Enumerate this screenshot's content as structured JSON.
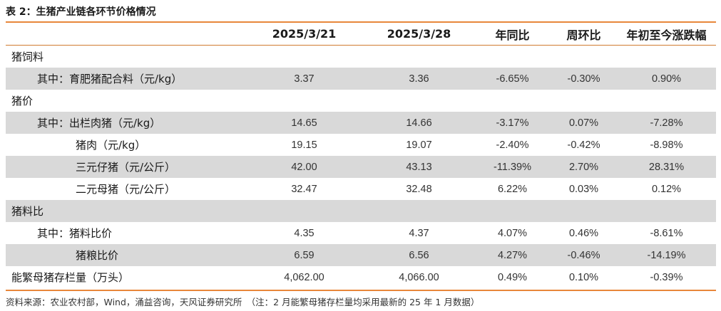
{
  "title": "表 2：生猪产业链各环节价格情况",
  "headers": [
    "",
    "2025/3/21",
    "2025/3/28",
    "年同比",
    "周环比",
    "年初至今涨跌幅"
  ],
  "rows": [
    {
      "label": "猪饲料",
      "indent": 0,
      "shade": false,
      "values": [
        "",
        "",
        "",
        "",
        ""
      ]
    },
    {
      "label": "其中：育肥猪配合料（元/kg）",
      "indent": 1,
      "shade": true,
      "values": [
        "3.37",
        "3.36",
        "-6.65%",
        "-0.30%",
        "0.90%"
      ]
    },
    {
      "label": "猪价",
      "indent": 0,
      "shade": false,
      "values": [
        "",
        "",
        "",
        "",
        ""
      ]
    },
    {
      "label": "其中：出栏肉猪（元/kg）",
      "indent": 1,
      "shade": true,
      "values": [
        "14.65",
        "14.66",
        "-3.17%",
        "0.07%",
        "-7.28%"
      ]
    },
    {
      "label": "猪肉（元/kg）",
      "indent": 2,
      "shade": false,
      "values": [
        "19.15",
        "19.07",
        "-2.40%",
        "-0.42%",
        "-8.98%"
      ]
    },
    {
      "label": "三元仔猪（元/公斤）",
      "indent": 2,
      "shade": true,
      "values": [
        "42.00",
        "43.13",
        "-11.39%",
        "2.70%",
        "28.31%"
      ]
    },
    {
      "label": "二元母猪（元/公斤）",
      "indent": 2,
      "shade": false,
      "values": [
        "32.47",
        "32.48",
        "6.22%",
        "0.03%",
        "0.12%"
      ]
    },
    {
      "label": "猪料比",
      "indent": 0,
      "shade": true,
      "values": [
        "",
        "",
        "",
        "",
        ""
      ]
    },
    {
      "label": "其中：猪料比价",
      "indent": 1,
      "shade": false,
      "values": [
        "4.35",
        "4.37",
        "4.07%",
        "0.46%",
        "-8.61%"
      ]
    },
    {
      "label": "猪粮比价",
      "indent": 2,
      "shade": true,
      "values": [
        "6.59",
        "6.56",
        "4.27%",
        "-0.46%",
        "-14.19%"
      ]
    },
    {
      "label": "能繁母猪存栏量（万头）",
      "indent": 0,
      "shade": false,
      "values": [
        "4,062.00",
        "4,066.00",
        "0.49%",
        "0.10%",
        "-0.39%"
      ]
    }
  ],
  "footer": "资料来源：农业农村部，Wind，涌益咨询，天风证券研究所　（注：2 月能繁母猪存栏量均采用最新的 25 年 1 月数据）"
}
